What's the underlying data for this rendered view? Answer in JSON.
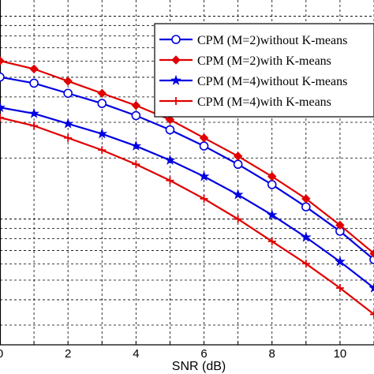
{
  "chart_data": {
    "type": "line",
    "xlabel": "SNR (dB)",
    "ylabel": "",
    "title": "",
    "xlim": [
      0,
      11
    ],
    "xticks": [
      0,
      2,
      4,
      6,
      8,
      10
    ],
    "grid": true,
    "legend_position": "top-right",
    "x": [
      0,
      1,
      2,
      3,
      4,
      5,
      6,
      7,
      8,
      9,
      10,
      11
    ],
    "series": [
      {
        "name": "CPM (M=2)without K-means",
        "color": "#0000e0",
        "marker": "circle",
        "values": [
          0.7,
          0.67,
          0.62,
          0.57,
          0.51,
          0.44,
          0.36,
          0.27,
          0.17,
          0.06,
          -0.06,
          -0.2
        ]
      },
      {
        "name": "CPM (M=2)with K-means",
        "color": "#e00000",
        "marker": "diamond",
        "values": [
          0.78,
          0.74,
          0.68,
          0.62,
          0.56,
          0.49,
          0.4,
          0.31,
          0.21,
          0.1,
          -0.03,
          -0.17
        ]
      },
      {
        "name": "CPM (M=4)without K-means",
        "color": "#0000e0",
        "marker": "star",
        "values": [
          0.55,
          0.52,
          0.47,
          0.42,
          0.36,
          0.29,
          0.21,
          0.12,
          0.02,
          -0.09,
          -0.21,
          -0.34
        ]
      },
      {
        "name": "CPM (M=4)with K-means",
        "color": "#e00000",
        "marker": "plus",
        "values": [
          0.5,
          0.46,
          0.4,
          0.34,
          0.27,
          0.19,
          0.1,
          0.0,
          -0.11,
          -0.22,
          -0.34,
          -0.47
        ]
      }
    ]
  }
}
